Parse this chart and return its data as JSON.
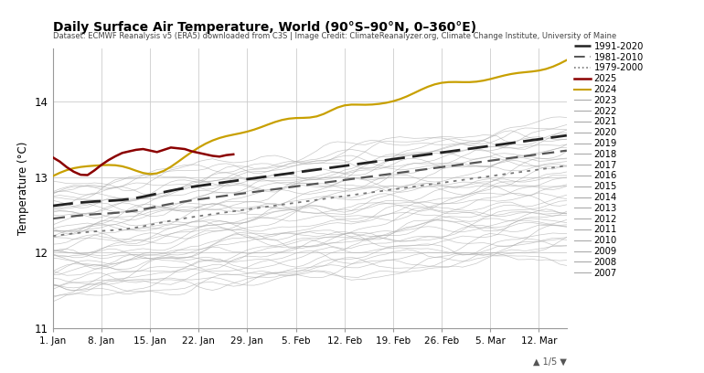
{
  "title": "Daily Surface Air Temperature, World (90°S–90°N, 0–360°E)",
  "subtitle": "Dataset: ECMWF Reanalysis v5 (ERA5) downloaded from C3S | Image Credit: ClimateReanalyzer.org, Climate Change Institute, University of Maine",
  "ylabel": "Temperature (°C)",
  "ylim": [
    11.0,
    14.7
  ],
  "yticks": [
    11,
    12,
    13,
    14
  ],
  "n_days": 75,
  "date_labels": [
    "1. Jan",
    "8. Jan",
    "15. Jan",
    "22. Jan",
    "29. Jan",
    "5. Feb",
    "12. Feb",
    "19. Feb",
    "26. Feb",
    "5. Mar",
    "12. Mar"
  ],
  "date_ticks": [
    0,
    7,
    14,
    21,
    28,
    35,
    42,
    49,
    56,
    63,
    70
  ],
  "bg_color": "#ffffff",
  "grid_color": "#cccccc",
  "gray_color": "#aaaaaa",
  "clim1991_color": "#222222",
  "clim1981_color": "#555555",
  "clim1979_color": "#777777",
  "color_2025": "#8b0000",
  "color_2024": "#c8a000",
  "legend_years": [
    "2023",
    "2022",
    "2021",
    "2020",
    "2019",
    "2018",
    "2017",
    "2016",
    "2015",
    "2014",
    "2013",
    "2012",
    "2011",
    "2010",
    "2009",
    "2008",
    "2007"
  ],
  "legend_gray": "#aaaaaa",
  "footnote": "▲ 1/5 ▼"
}
